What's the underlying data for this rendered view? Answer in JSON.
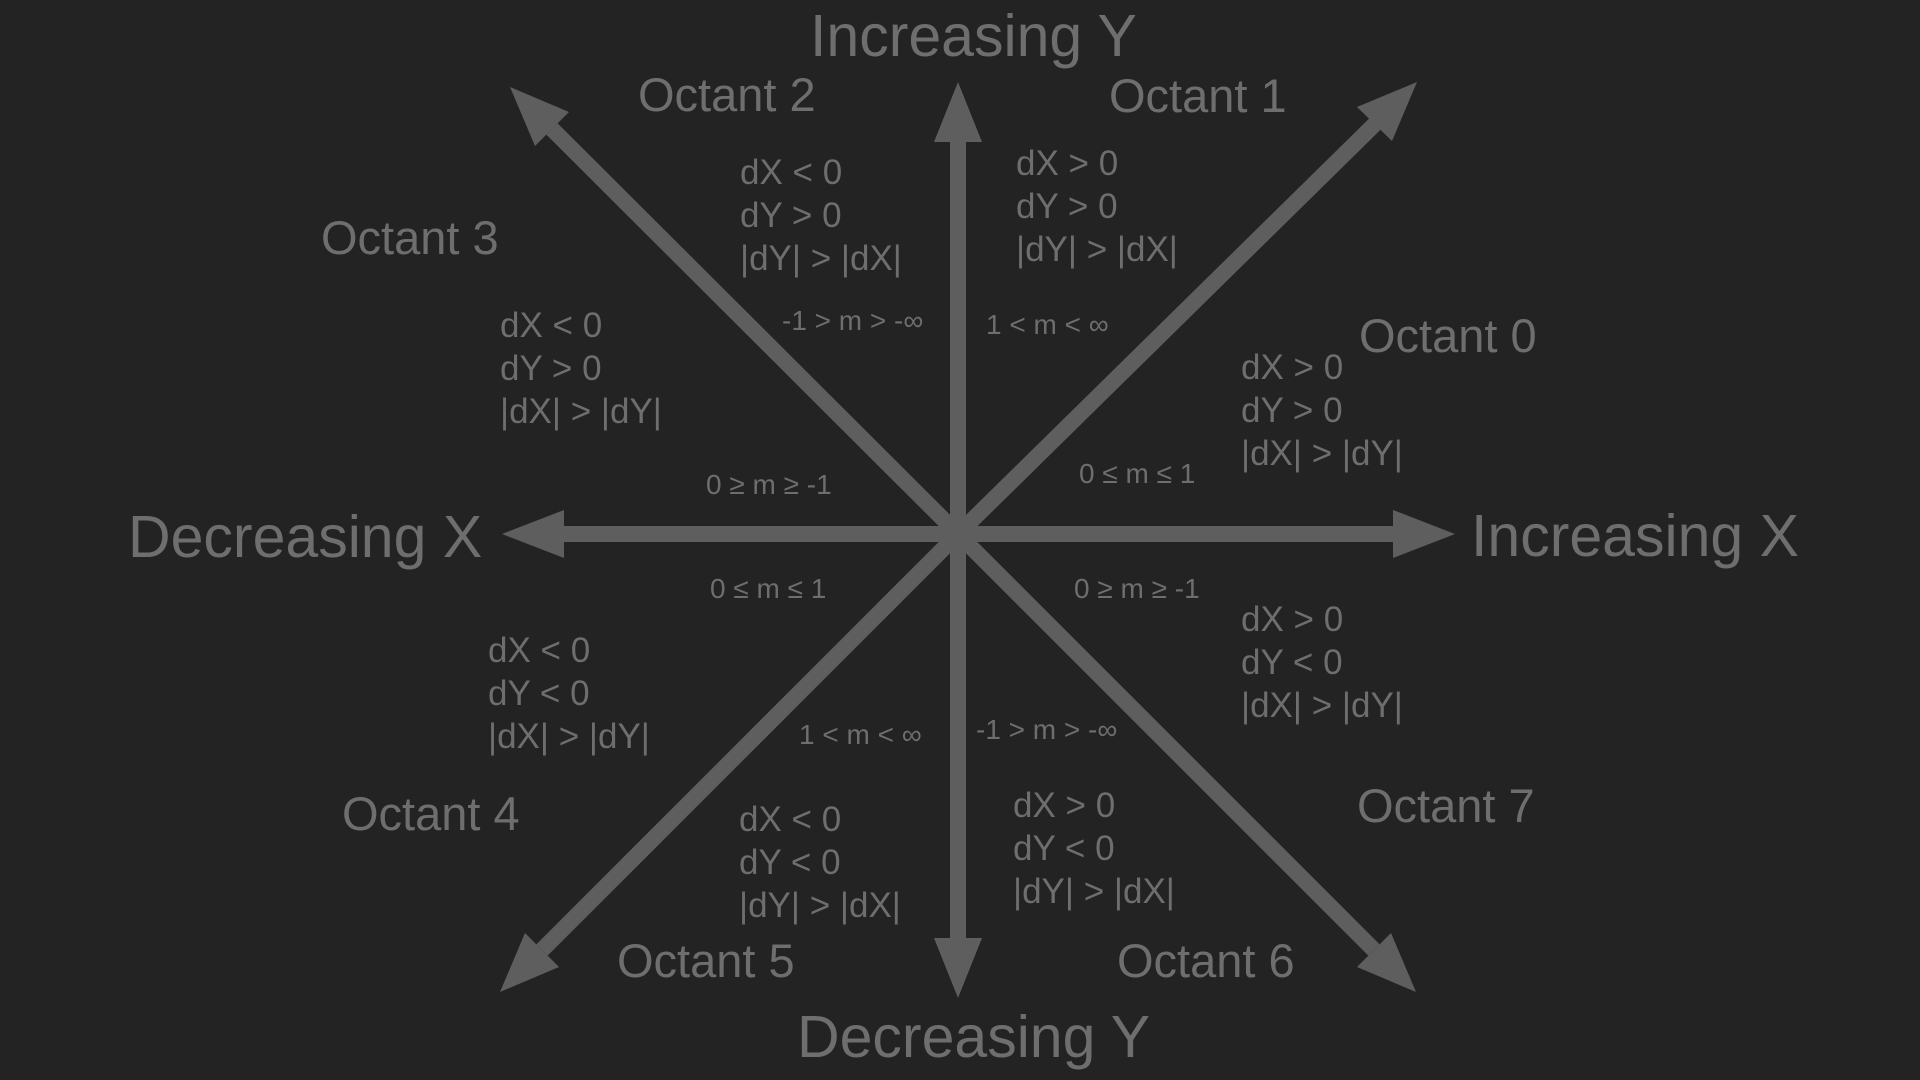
{
  "colors": {
    "background": "#232323",
    "arrow": "#5e5e5e",
    "text": "#6e6e6e"
  },
  "axes": {
    "increasing_y": "Increasing Y",
    "decreasing_y": "Decreasing Y",
    "increasing_x": "Increasing X",
    "decreasing_x": "Decreasing X"
  },
  "octants": [
    {
      "label": "Octant 0",
      "conditions": [
        "dX > 0",
        "dY > 0",
        "|dX| > |dY|"
      ],
      "slope": "0 ≤  m ≤ 1"
    },
    {
      "label": "Octant 1",
      "conditions": [
        "dX > 0",
        "dY > 0",
        "|dY| > |dX|"
      ],
      "slope": "1 < m < ∞"
    },
    {
      "label": "Octant 2",
      "conditions": [
        "dX < 0",
        "dY > 0",
        "|dY| > |dX|"
      ],
      "slope": "-1 > m > -∞"
    },
    {
      "label": "Octant 3",
      "conditions": [
        "dX < 0",
        "dY > 0",
        "|dX| > |dY|"
      ],
      "slope": "0 ≥  m ≥ -1"
    },
    {
      "label": "Octant 4",
      "conditions": [
        "dX < 0",
        "dY < 0",
        "|dX| > |dY|"
      ],
      "slope": "0 ≤  m ≤ 1"
    },
    {
      "label": "Octant 5",
      "conditions": [
        "dX < 0",
        "dY < 0",
        "|dY| > |dX|"
      ],
      "slope": "1 < m < ∞"
    },
    {
      "label": "Octant 6",
      "conditions": [
        "dX > 0",
        "dY < 0",
        "|dY| > |dX|"
      ],
      "slope": "-1 > m > -∞"
    },
    {
      "label": "Octant 7",
      "conditions": [
        "dX > 0",
        "dY < 0",
        "|dX| > |dY|"
      ],
      "slope": "0 ≥  m ≥ -1"
    }
  ]
}
